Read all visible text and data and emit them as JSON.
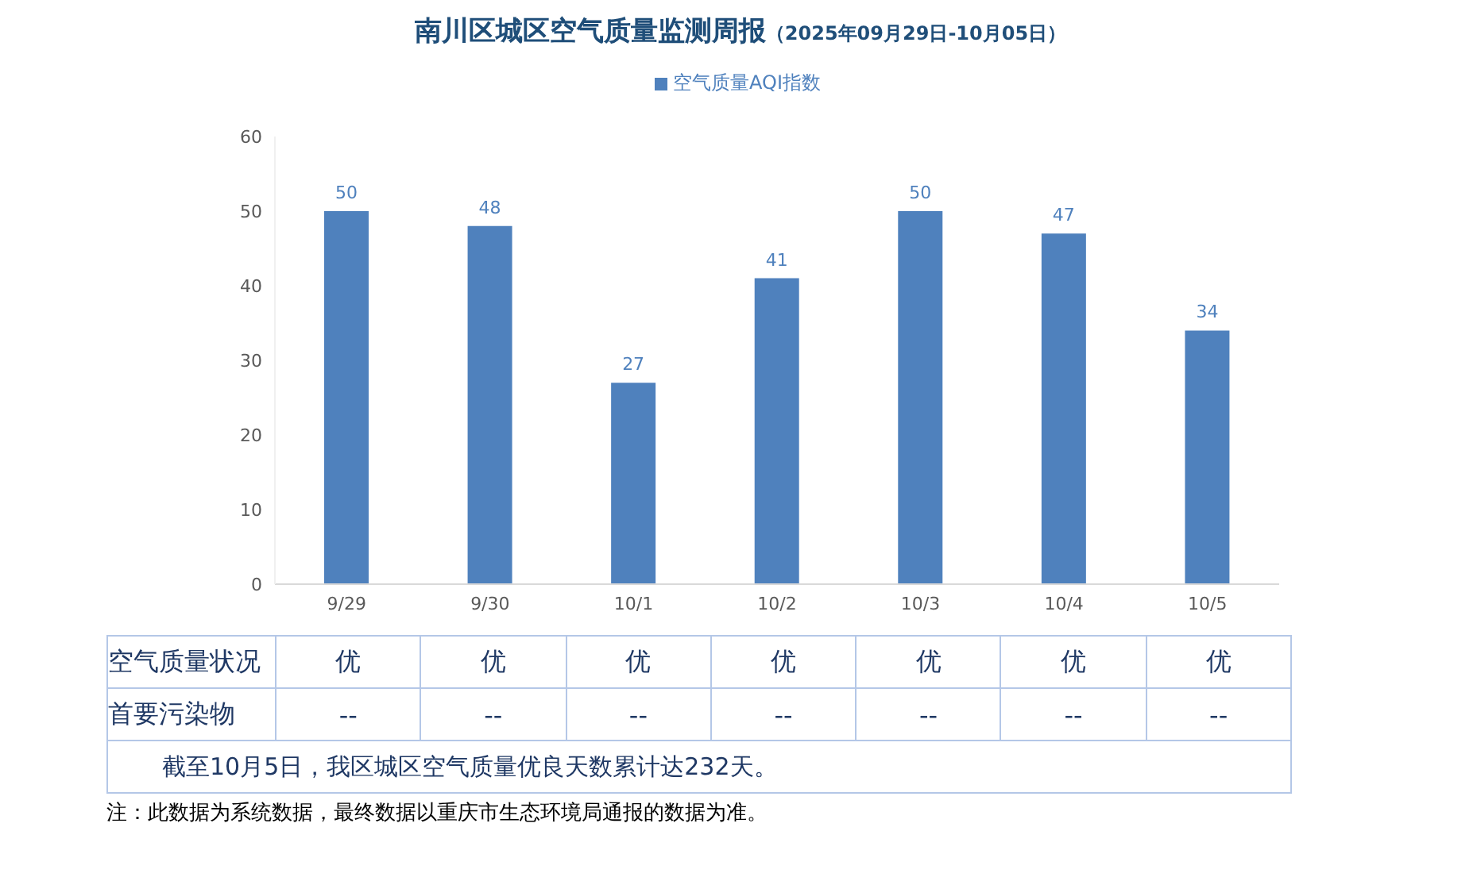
{
  "chart_data": {
    "type": "bar",
    "title": "南川区城区空气质量监测周报",
    "subtitle": "（2025年09月29日-10月05日）",
    "categories": [
      "9/29",
      "9/30",
      "10/1",
      "10/2",
      "10/3",
      "10/4",
      "10/5"
    ],
    "series": [
      {
        "name": "空气质量AQI指数",
        "color": "#4f81bd",
        "values": [
          50,
          48,
          27,
          41,
          50,
          47,
          34
        ]
      }
    ],
    "ylim": [
      0,
      60
    ],
    "yticks": [
      0,
      10,
      20,
      30,
      40,
      50,
      60
    ],
    "grid": false,
    "legend": "top",
    "data_labels": true,
    "annotations": [
      "空气质量状况",
      "优",
      "优",
      "优",
      "优",
      "优",
      "优",
      "优",
      "首要污染物",
      "--",
      "--",
      "--",
      "--",
      "--",
      "--",
      "--",
      "截至10月5日，我区城区空气质量优良天数累计达232天。",
      "注：此数据为系统数据，最终数据以重庆市生态环境局通报的数据为准。"
    ]
  }
}
